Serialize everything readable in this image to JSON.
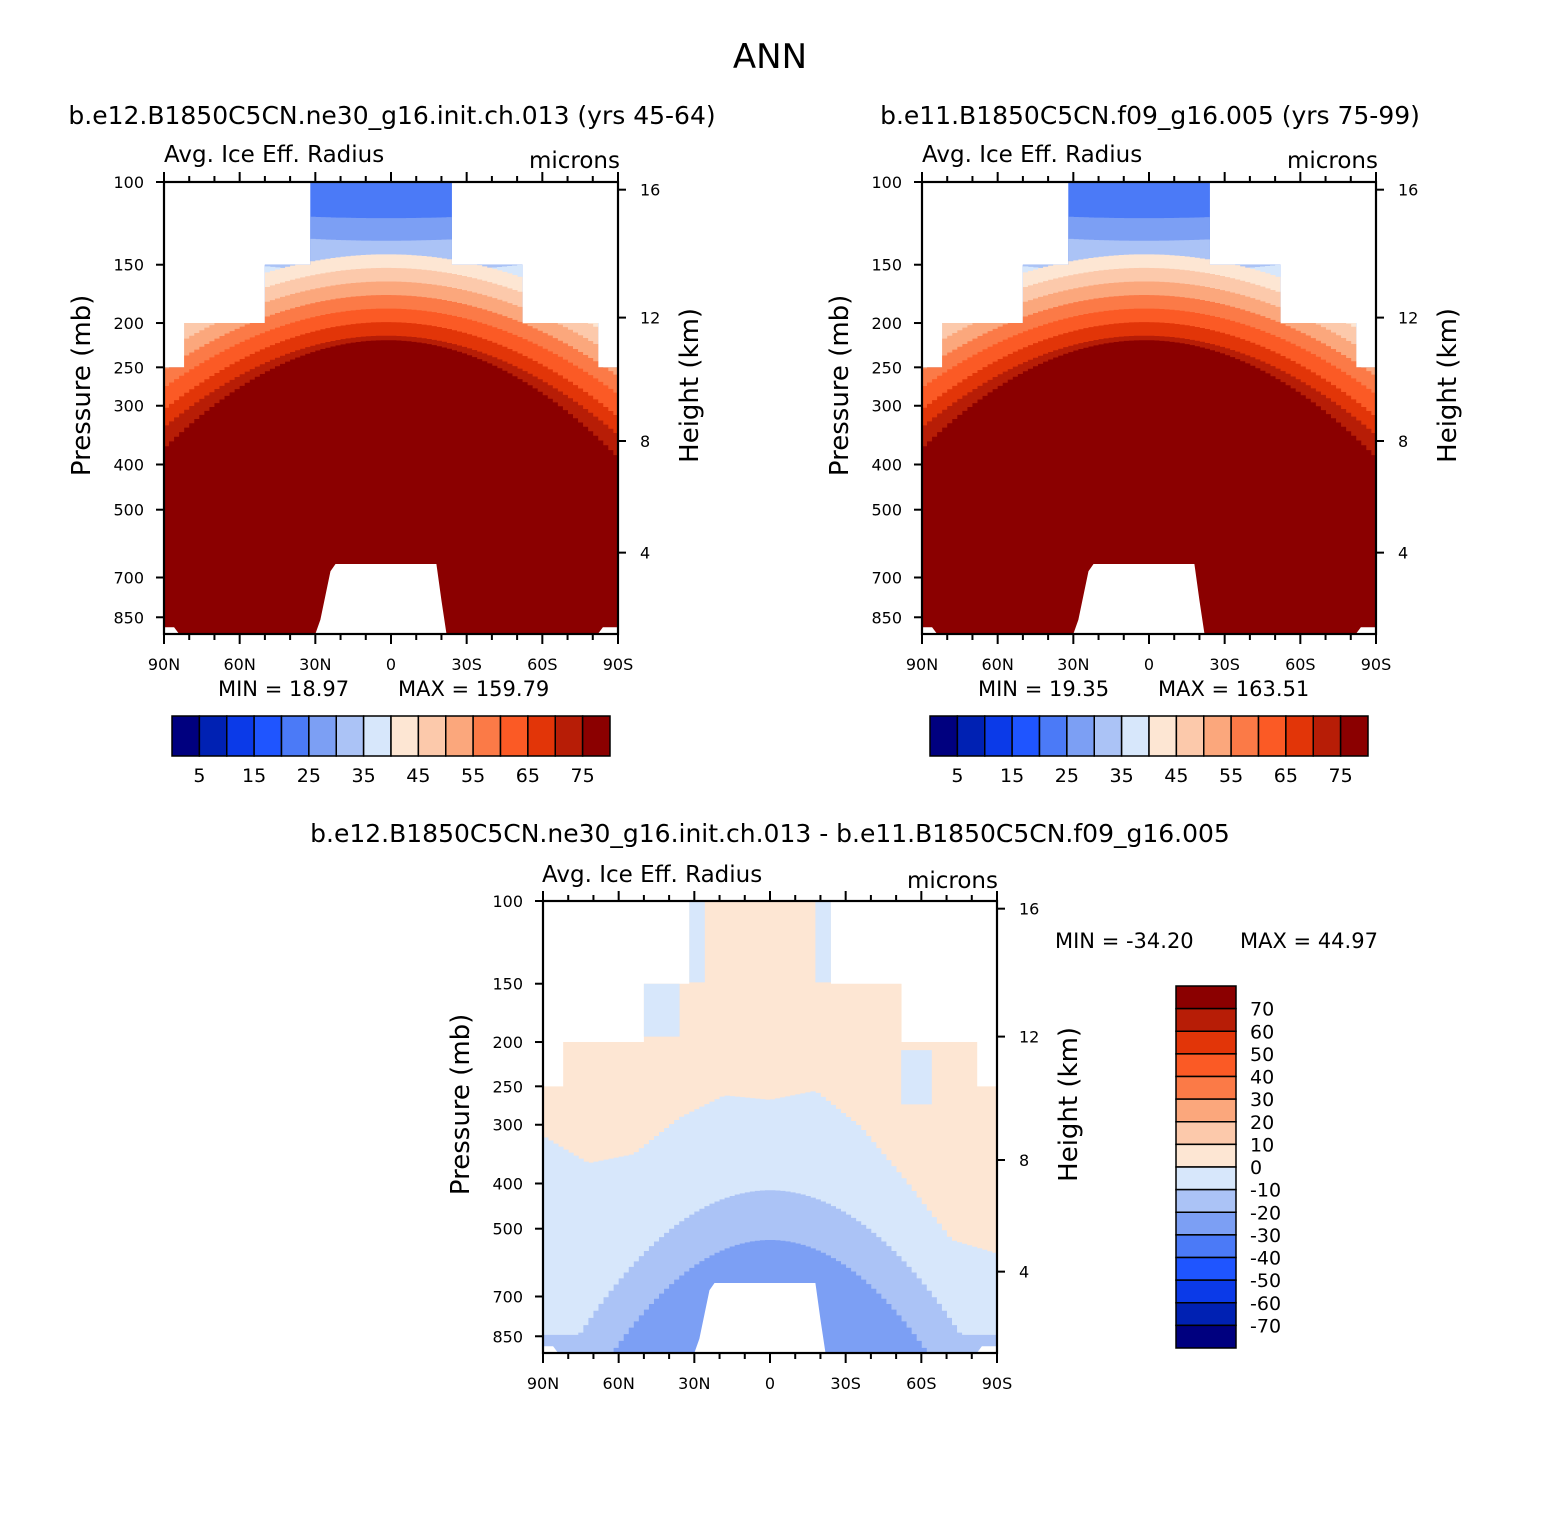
{
  "figure": {
    "title": "ANN"
  },
  "colors": {
    "full_field": [
      "#00007f",
      "#0021b3",
      "#0b3ae8",
      "#1f55ff",
      "#4b7af7",
      "#7c9ff4",
      "#abc3f6",
      "#d7e7fb",
      "#fde6d3",
      "#fcc9ab",
      "#fba77c",
      "#fb7a47",
      "#fb5a25",
      "#e23508",
      "#b71d06",
      "#8b0000"
    ],
    "difference": [
      "#00007f",
      "#0021b3",
      "#0b3ae8",
      "#1f55ff",
      "#4b7af7",
      "#7c9ff4",
      "#abc3f6",
      "#d7e7fb",
      "#fde6d3",
      "#fcc9ab",
      "#fba77c",
      "#fb7a47",
      "#fb5a25",
      "#e23508",
      "#b71d06",
      "#8b0000"
    ]
  },
  "axes": {
    "pressure_ticks": [
      "100",
      "150",
      "200",
      "250",
      "300",
      "400",
      "500",
      "700",
      "850"
    ],
    "height_ticks": [
      "16",
      "12",
      "8",
      "4"
    ],
    "lat_ticks": [
      "90N",
      "60N",
      "30N",
      "0",
      "30S",
      "60S",
      "90S"
    ],
    "ylabel_left": "Pressure (mb)",
    "ylabel_right": "Height (km)"
  },
  "panels": [
    {
      "case": "b.e12.B1850C5CN.ne30_g16.init.ch.013 (yrs 45-64)",
      "variable": "Avg. Ice Eff. Radius",
      "units": "microns",
      "min_label": "MIN =   18.97",
      "max_label": "MAX = 159.79",
      "colorbar_labels": [
        "5",
        "15",
        "25",
        "35",
        "45",
        "55",
        "65",
        "75"
      ]
    },
    {
      "case": "b.e11.B1850C5CN.f09_g16.005 (yrs 75-99)",
      "variable": "Avg. Ice Eff. Radius",
      "units": "microns",
      "min_label": "MIN =   19.35",
      "max_label": "MAX = 163.51",
      "colorbar_labels": [
        "5",
        "15",
        "25",
        "35",
        "45",
        "55",
        "65",
        "75"
      ]
    },
    {
      "case": "b.e12.B1850C5CN.ne30_g16.init.ch.013 - b.e11.B1850C5CN.f09_g16.005",
      "variable": "Avg. Ice Eff. Radius",
      "units": "microns",
      "min_label": "MIN = -34.20",
      "max_label": "MAX =   44.97",
      "colorbar_labels": [
        "70",
        "60",
        "50",
        "40",
        "30",
        "20",
        "10",
        "0",
        "-10",
        "-20",
        "-30",
        "-40",
        "-50",
        "-60",
        "-70"
      ]
    }
  ],
  "chart_data": [
    {
      "type": "heatmap",
      "title": "Avg. Ice Eff. Radius",
      "subtitle": "b.e12.B1850C5CN.ne30_g16.init.ch.013 (yrs 45-64)",
      "units": "microns",
      "xlabel": "",
      "ylabel": "Pressure (mb)",
      "ylabel_right": "Height (km)",
      "x_ticks": [
        "90N",
        "60N",
        "30N",
        "0",
        "30S",
        "60S",
        "90S"
      ],
      "y_ticks": [
        "100",
        "150",
        "200",
        "250",
        "300",
        "400",
        "500",
        "700",
        "850"
      ],
      "contour_levels": [
        5,
        10,
        15,
        20,
        25,
        30,
        35,
        40,
        45,
        50,
        55,
        60,
        65,
        70,
        75
      ],
      "min": 18.97,
      "max": 159.79
    },
    {
      "type": "heatmap",
      "title": "Avg. Ice Eff. Radius",
      "subtitle": "b.e11.B1850C5CN.f09_g16.005 (yrs 75-99)",
      "units": "microns",
      "xlabel": "",
      "ylabel": "Pressure (mb)",
      "ylabel_right": "Height (km)",
      "x_ticks": [
        "90N",
        "60N",
        "30N",
        "0",
        "30S",
        "60S",
        "90S"
      ],
      "y_ticks": [
        "100",
        "150",
        "200",
        "250",
        "300",
        "400",
        "500",
        "700",
        "850"
      ],
      "contour_levels": [
        5,
        10,
        15,
        20,
        25,
        30,
        35,
        40,
        45,
        50,
        55,
        60,
        65,
        70,
        75
      ],
      "min": 19.35,
      "max": 163.51
    },
    {
      "type": "heatmap",
      "title": "Avg. Ice Eff. Radius",
      "subtitle": "b.e12.B1850C5CN.ne30_g16.init.ch.013 - b.e11.B1850C5CN.f09_g16.005",
      "units": "microns",
      "xlabel": "",
      "ylabel": "Pressure (mb)",
      "ylabel_right": "Height (km)",
      "x_ticks": [
        "90N",
        "60N",
        "30N",
        "0",
        "30S",
        "60S",
        "90S"
      ],
      "y_ticks": [
        "100",
        "150",
        "200",
        "250",
        "300",
        "400",
        "500",
        "700",
        "850"
      ],
      "contour_levels": [
        -70,
        -60,
        -50,
        -40,
        -30,
        -20,
        -10,
        0,
        10,
        20,
        30,
        40,
        50,
        60,
        70
      ],
      "min": -34.2,
      "max": 44.97
    }
  ]
}
